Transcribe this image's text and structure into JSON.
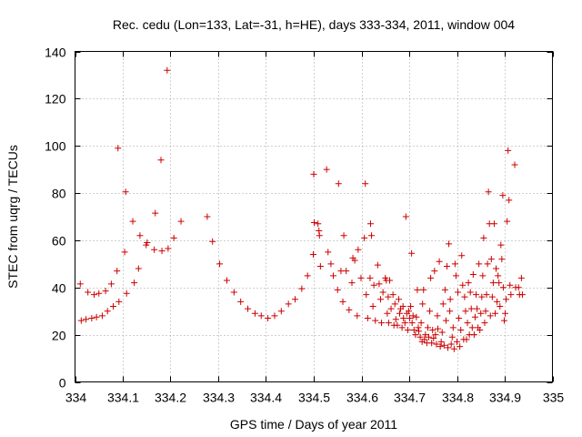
{
  "chart_data": {
    "type": "scatter",
    "title": "Rec. cedu (Lon=133, Lat=-31, h=HE), days 333-334, 2011, window 004",
    "xlabel": "GPS time / Days of year 2011",
    "ylabel": "STEC from uqrg / TECUs",
    "xlim": [
      334,
      335
    ],
    "ylim": [
      0,
      140
    ],
    "xticks": [
      "334",
      "334.1",
      "334.2",
      "334.3",
      "334.4",
      "334.5",
      "334.6",
      "334.7",
      "334.8",
      "334.9",
      "335"
    ],
    "yticks": [
      "0",
      "20",
      "40",
      "60",
      "80",
      "100",
      "120",
      "140"
    ],
    "grid": true,
    "marker": "+",
    "color": "#cc0000",
    "series": [
      {
        "name": "STEC",
        "points": [
          [
            334.011,
            41.5
          ],
          [
            334.013,
            26
          ],
          [
            334.023,
            26.5
          ],
          [
            334.027,
            38
          ],
          [
            334.035,
            27
          ],
          [
            334.04,
            37
          ],
          [
            334.045,
            27.5
          ],
          [
            334.05,
            37.5
          ],
          [
            334.057,
            28
          ],
          [
            334.064,
            38.5
          ],
          [
            334.068,
            30
          ],
          [
            334.076,
            41.5
          ],
          [
            334.08,
            32
          ],
          [
            334.088,
            47
          ],
          [
            334.09,
            99
          ],
          [
            334.092,
            34
          ],
          [
            334.104,
            55
          ],
          [
            334.106,
            80.5
          ],
          [
            334.108,
            37.5
          ],
          [
            334.121,
            68
          ],
          [
            334.124,
            42
          ],
          [
            334.133,
            48
          ],
          [
            334.136,
            62
          ],
          [
            334.149,
            58
          ],
          [
            334.151,
            59
          ],
          [
            334.166,
            56
          ],
          [
            334.168,
            71.5
          ],
          [
            334.18,
            94
          ],
          [
            334.182,
            55.5
          ],
          [
            334.193,
            132
          ],
          [
            334.195,
            56.5
          ],
          [
            334.207,
            61
          ],
          [
            334.222,
            68
          ],
          [
            334.277,
            70
          ],
          [
            334.288,
            59.5
          ],
          [
            334.303,
            50
          ],
          [
            334.318,
            43
          ],
          [
            334.333,
            38
          ],
          [
            334.347,
            34
          ],
          [
            334.362,
            31
          ],
          [
            334.377,
            29
          ],
          [
            334.39,
            28
          ],
          [
            334.404,
            27
          ],
          [
            334.418,
            28
          ],
          [
            334.432,
            30
          ],
          [
            334.447,
            33
          ],
          [
            334.461,
            35
          ],
          [
            334.475,
            39.5
          ],
          [
            334.487,
            45
          ],
          [
            334.499,
            54
          ],
          [
            334.5,
            88
          ],
          [
            334.501,
            67.5
          ],
          [
            334.509,
            67
          ],
          [
            334.511,
            64
          ],
          [
            334.512,
            62
          ],
          [
            334.514,
            49
          ],
          [
            334.527,
            90
          ],
          [
            334.53,
            55
          ],
          [
            334.536,
            50
          ],
          [
            334.541,
            45
          ],
          [
            334.55,
            39
          ],
          [
            334.552,
            84
          ],
          [
            334.557,
            47
          ],
          [
            334.561,
            34
          ],
          [
            334.563,
            62
          ],
          [
            334.568,
            47
          ],
          [
            334.574,
            30.5
          ],
          [
            334.58,
            42
          ],
          [
            334.582,
            52.5
          ],
          [
            334.586,
            51.5
          ],
          [
            334.591,
            28
          ],
          [
            334.593,
            56
          ],
          [
            334.599,
            44
          ],
          [
            334.606,
            61
          ],
          [
            334.608,
            84
          ],
          [
            334.61,
            37
          ],
          [
            334.613,
            27
          ],
          [
            334.618,
            44
          ],
          [
            334.619,
            67
          ],
          [
            334.621,
            62
          ],
          [
            334.624,
            32
          ],
          [
            334.626,
            41
          ],
          [
            334.629,
            26
          ],
          [
            334.634,
            49.5
          ],
          [
            334.637,
            41.5
          ],
          [
            334.64,
            35
          ],
          [
            334.642,
            25
          ],
          [
            334.645,
            38
          ],
          [
            334.65,
            44
          ],
          [
            334.652,
            43
          ],
          [
            334.654,
            29
          ],
          [
            334.656,
            36
          ],
          [
            334.657,
            25
          ],
          [
            334.659,
            43
          ],
          [
            334.662,
            31
          ],
          [
            334.666,
            37
          ],
          [
            334.668,
            24
          ],
          [
            334.67,
            33
          ],
          [
            334.672,
            26.5
          ],
          [
            334.675,
            24
          ],
          [
            334.678,
            35
          ],
          [
            334.68,
            29
          ],
          [
            334.682,
            31
          ],
          [
            334.685,
            23
          ],
          [
            334.687,
            32
          ],
          [
            334.688,
            27
          ],
          [
            334.691,
            25
          ],
          [
            334.693,
            70
          ],
          [
            334.695,
            29
          ],
          [
            334.697,
            22
          ],
          [
            334.699,
            30
          ],
          [
            334.701,
            27
          ],
          [
            334.703,
            32
          ],
          [
            334.705,
            54.5
          ],
          [
            334.706,
            25
          ],
          [
            334.708,
            28
          ],
          [
            334.71,
            22
          ],
          [
            334.713,
            20
          ],
          [
            334.715,
            27.5
          ],
          [
            334.717,
            39
          ],
          [
            334.719,
            23
          ],
          [
            334.72,
            21.5
          ],
          [
            334.723,
            19
          ],
          [
            334.725,
            25
          ],
          [
            334.727,
            17
          ],
          [
            334.728,
            33
          ],
          [
            334.73,
            39
          ],
          [
            334.732,
            18
          ],
          [
            334.734,
            20
          ],
          [
            334.737,
            16.5
          ],
          [
            334.739,
            23
          ],
          [
            334.741,
            19
          ],
          [
            334.743,
            30
          ],
          [
            334.745,
            44
          ],
          [
            334.747,
            16.5
          ],
          [
            334.749,
            22
          ],
          [
            334.751,
            18.5
          ],
          [
            334.753,
            47
          ],
          [
            334.755,
            20
          ],
          [
            334.757,
            16
          ],
          [
            334.759,
            28
          ],
          [
            334.76,
            22.5
          ],
          [
            334.763,
            51
          ],
          [
            334.765,
            15
          ],
          [
            334.767,
            17
          ],
          [
            334.769,
            21
          ],
          [
            334.771,
            33
          ],
          [
            334.773,
            15.5
          ],
          [
            334.775,
            39
          ],
          [
            334.777,
            26
          ],
          [
            334.779,
            49
          ],
          [
            334.781,
            14.5
          ],
          [
            334.783,
            58.5
          ],
          [
            334.785,
            30
          ],
          [
            334.786,
            35
          ],
          [
            334.788,
            16
          ],
          [
            334.79,
            19
          ],
          [
            334.792,
            23
          ],
          [
            334.794,
            14
          ],
          [
            334.796,
            50
          ],
          [
            334.798,
            45
          ],
          [
            334.8,
            17
          ],
          [
            334.802,
            38
          ],
          [
            334.804,
            27
          ],
          [
            334.806,
            15
          ],
          [
            334.808,
            22
          ],
          [
            334.81,
            53.5
          ],
          [
            334.812,
            41
          ],
          [
            334.814,
            18
          ],
          [
            334.816,
            36
          ],
          [
            334.818,
            30
          ],
          [
            334.82,
            18
          ],
          [
            334.822,
            25
          ],
          [
            334.824,
            42
          ],
          [
            334.826,
            20
          ],
          [
            334.828,
            38
          ],
          [
            334.83,
            31
          ],
          [
            334.832,
            23
          ],
          [
            334.834,
            45.5
          ],
          [
            334.836,
            20
          ],
          [
            334.838,
            27.5
          ],
          [
            334.84,
            37
          ],
          [
            334.842,
            31
          ],
          [
            334.844,
            23
          ],
          [
            334.846,
            50
          ],
          [
            334.848,
            22
          ],
          [
            334.85,
            29
          ],
          [
            334.852,
            36
          ],
          [
            334.854,
            45
          ],
          [
            334.856,
            61
          ],
          [
            334.858,
            25
          ],
          [
            334.86,
            30
          ],
          [
            334.862,
            37
          ],
          [
            334.864,
            50
          ],
          [
            334.866,
            80.5
          ],
          [
            334.868,
            67
          ],
          [
            334.87,
            28
          ],
          [
            334.872,
            52
          ],
          [
            334.874,
            36
          ],
          [
            334.876,
            42
          ],
          [
            334.878,
            67
          ],
          [
            334.88,
            29
          ],
          [
            334.882,
            48
          ],
          [
            334.884,
            34
          ],
          [
            334.886,
            45
          ],
          [
            334.888,
            42
          ],
          [
            334.89,
            32
          ],
          [
            334.892,
            58
          ],
          [
            334.894,
            52
          ],
          [
            334.896,
            79
          ],
          [
            334.897,
            40
          ],
          [
            334.899,
            26
          ],
          [
            334.901,
            29
          ],
          [
            334.903,
            35
          ],
          [
            334.905,
            68
          ],
          [
            334.907,
            98
          ],
          [
            334.909,
            77
          ],
          [
            334.911,
            41
          ],
          [
            334.913,
            37
          ],
          [
            334.921,
            92
          ],
          [
            334.923,
            40
          ],
          [
            334.929,
            40
          ],
          [
            334.931,
            37
          ],
          [
            334.935,
            44
          ],
          [
            334.937,
            37
          ]
        ]
      }
    ]
  }
}
